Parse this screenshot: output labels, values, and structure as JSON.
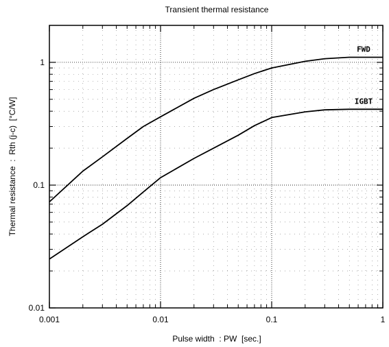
{
  "chart_data": {
    "type": "line",
    "title": "Transient thermal resistance",
    "xlabel": "Pulse width  : PW  [sec.]",
    "ylabel": "Thermal resistance  :  Rth (j-c)  [°C/W]",
    "xscale": "log",
    "yscale": "log",
    "xlim": [
      0.001,
      1
    ],
    "ylim": [
      0.01,
      2
    ],
    "x_ticks": [
      {
        "value": 0.001,
        "label": "0.001"
      },
      {
        "value": 0.01,
        "label": "0.01"
      },
      {
        "value": 0.1,
        "label": "0.1"
      },
      {
        "value": 1,
        "label": "1"
      }
    ],
    "y_ticks": [
      {
        "value": 0.01,
        "label": "0.01"
      },
      {
        "value": 0.1,
        "label": "0.1"
      },
      {
        "value": 1,
        "label": "1"
      }
    ],
    "grid": true,
    "series": [
      {
        "name": "FWD",
        "color": "#000000",
        "x": [
          0.001,
          0.002,
          0.003,
          0.005,
          0.007,
          0.01,
          0.02,
          0.03,
          0.05,
          0.07,
          0.1,
          0.2,
          0.3,
          0.5,
          1
        ],
        "y": [
          0.073,
          0.13,
          0.17,
          0.24,
          0.3,
          0.36,
          0.51,
          0.6,
          0.72,
          0.81,
          0.9,
          1.02,
          1.07,
          1.1,
          1.1
        ]
      },
      {
        "name": "IGBT",
        "color": "#000000",
        "x": [
          0.001,
          0.002,
          0.003,
          0.005,
          0.007,
          0.01,
          0.02,
          0.03,
          0.05,
          0.07,
          0.1,
          0.2,
          0.3,
          0.5,
          1
        ],
        "y": [
          0.025,
          0.038,
          0.048,
          0.068,
          0.088,
          0.115,
          0.165,
          0.2,
          0.255,
          0.305,
          0.355,
          0.395,
          0.41,
          0.415,
          0.415
        ]
      }
    ]
  }
}
